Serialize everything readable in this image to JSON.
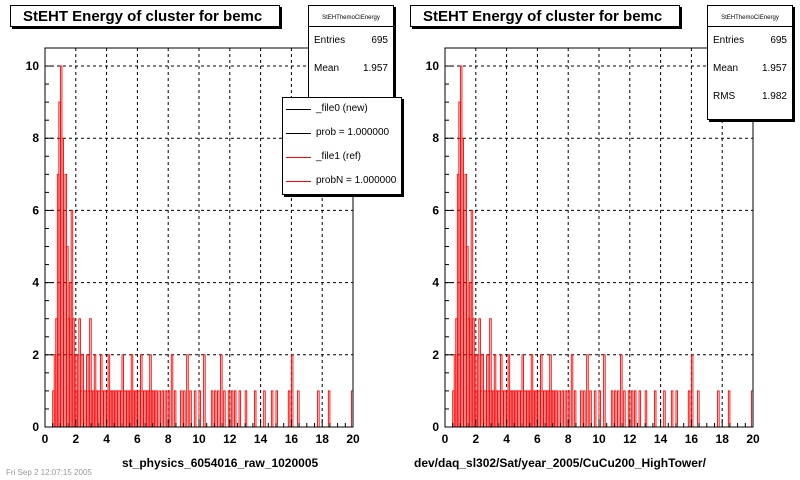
{
  "footer_text": "Fri Sep 2 12:07:15 2005",
  "chart_data": [
    {
      "type": "bar",
      "title": "StEHT Energy of cluster for bemc",
      "xlabel": "st_physics_6054016_raw_1020005",
      "ylabel": "",
      "xlim": [
        0,
        20
      ],
      "ylim": [
        0,
        10.5
      ],
      "xticks": [
        0,
        2,
        4,
        6,
        8,
        10,
        12,
        14,
        16,
        18,
        20
      ],
      "yticks": [
        0,
        2,
        4,
        6,
        8,
        10
      ],
      "grid": true,
      "stats": {
        "title": "StEHThemoCIEnergy",
        "entries": [
          {
            "label": "Entries",
            "value": "695"
          },
          {
            "label": "Mean",
            "value": "1.957"
          }
        ]
      },
      "legend": [
        {
          "label": "_file0 (new)",
          "color": "#000000"
        },
        {
          "label": "prob = 1.000000",
          "color": "#000000"
        },
        {
          "label": "_file1 (ref)",
          "color": "#ff0000"
        },
        {
          "label": "probN = 1.000000",
          "color": "#ff0000"
        }
      ],
      "series": [
        {
          "color": "#ff0000",
          "x": [
            0.55,
            0.65,
            0.75,
            0.85,
            0.95,
            1.05,
            1.15,
            1.25,
            1.35,
            1.45,
            1.55,
            1.65,
            1.75,
            1.85,
            1.95,
            2.05,
            2.15,
            2.25,
            2.35,
            2.45,
            2.55,
            2.65,
            2.75,
            2.85,
            2.95,
            3.05,
            3.15,
            3.25,
            3.35,
            3.45,
            3.55,
            3.65,
            3.75,
            3.85,
            3.95,
            4.05,
            4.15,
            4.25,
            4.35,
            4.45,
            4.55,
            4.65,
            4.75,
            4.85,
            4.95,
            5.05,
            5.15,
            5.25,
            5.35,
            5.45,
            5.55,
            5.65,
            5.75,
            5.85,
            5.95,
            6.05,
            6.15,
            6.25,
            6.35,
            6.45,
            6.55,
            6.65,
            6.75,
            6.85,
            6.95,
            7.05,
            7.15,
            7.25,
            7.45,
            7.65,
            7.85,
            8.05,
            8.25,
            8.45,
            8.85,
            9.05,
            9.25,
            9.45,
            9.75,
            10.05,
            10.35,
            10.85,
            11.05,
            11.25,
            11.45,
            11.65,
            11.95,
            12.15,
            12.35,
            12.65,
            13.05,
            13.65,
            14.25,
            14.75,
            15.05,
            15.85,
            16.05,
            16.45,
            17.75,
            18.45,
            19.95
          ],
          "values": [
            1,
            2,
            3,
            7,
            9,
            10,
            8,
            6,
            7,
            5,
            3,
            4,
            6,
            3,
            2,
            1,
            2,
            3,
            1,
            2,
            1,
            1,
            2,
            1,
            3,
            1,
            1,
            2,
            1,
            1,
            1,
            2,
            1,
            1,
            1,
            1,
            2,
            1,
            1,
            1,
            1,
            1,
            1,
            1,
            1,
            2,
            1,
            1,
            1,
            1,
            1,
            2,
            1,
            1,
            1,
            1,
            1,
            2,
            1,
            1,
            1,
            1,
            1,
            2,
            1,
            1,
            1,
            1,
            1,
            1,
            1,
            1,
            2,
            1,
            1,
            1,
            2,
            1,
            1,
            1,
            2,
            1,
            1,
            1,
            2,
            1,
            1,
            1,
            1,
            1,
            1,
            1,
            1,
            1,
            1,
            1,
            2,
            1,
            1,
            1,
            1
          ]
        }
      ]
    },
    {
      "type": "bar",
      "title": "StEHT Energy of cluster for bemc",
      "xlabel": "dev/daq_sl302/Sat/year_2005/CuCu200_HighTower/",
      "ylabel": "",
      "xlim": [
        0,
        20
      ],
      "ylim": [
        0,
        10.5
      ],
      "xticks": [
        0,
        2,
        4,
        6,
        8,
        10,
        12,
        14,
        16,
        18,
        20
      ],
      "yticks": [
        0,
        2,
        4,
        6,
        8,
        10
      ],
      "grid": true,
      "stats": {
        "title": "StEHThemoCIEnergy",
        "entries": [
          {
            "label": "Entries",
            "value": "695"
          },
          {
            "label": "Mean",
            "value": "1.957"
          },
          {
            "label": "RMS",
            "value": "1.982"
          }
        ]
      },
      "series": [
        {
          "color": "#ff0000",
          "x": [
            0.55,
            0.65,
            0.75,
            0.85,
            0.95,
            1.05,
            1.15,
            1.25,
            1.35,
            1.45,
            1.55,
            1.65,
            1.75,
            1.85,
            1.95,
            2.05,
            2.15,
            2.25,
            2.35,
            2.45,
            2.55,
            2.65,
            2.75,
            2.85,
            2.95,
            3.05,
            3.15,
            3.25,
            3.35,
            3.45,
            3.55,
            3.65,
            3.75,
            3.85,
            3.95,
            4.05,
            4.15,
            4.25,
            4.35,
            4.45,
            4.55,
            4.65,
            4.75,
            4.85,
            4.95,
            5.05,
            5.15,
            5.25,
            5.35,
            5.45,
            5.55,
            5.65,
            5.75,
            5.85,
            5.95,
            6.05,
            6.15,
            6.25,
            6.35,
            6.45,
            6.55,
            6.65,
            6.75,
            6.85,
            6.95,
            7.05,
            7.15,
            7.25,
            7.45,
            7.65,
            7.85,
            8.05,
            8.25,
            8.45,
            8.85,
            9.05,
            9.25,
            9.45,
            9.75,
            10.05,
            10.35,
            10.85,
            11.05,
            11.25,
            11.45,
            11.65,
            11.95,
            12.15,
            12.35,
            12.65,
            13.05,
            13.65,
            14.25,
            14.75,
            15.05,
            15.85,
            16.05,
            16.45,
            17.75,
            18.45,
            19.95
          ],
          "values": [
            1,
            2,
            3,
            7,
            9,
            10,
            8,
            6,
            7,
            5,
            3,
            4,
            6,
            3,
            2,
            1,
            2,
            3,
            1,
            2,
            1,
            1,
            2,
            1,
            3,
            1,
            1,
            2,
            1,
            1,
            1,
            2,
            1,
            1,
            1,
            1,
            2,
            1,
            1,
            1,
            1,
            1,
            1,
            1,
            1,
            2,
            1,
            1,
            1,
            1,
            1,
            2,
            1,
            1,
            1,
            1,
            1,
            2,
            1,
            1,
            1,
            1,
            1,
            2,
            1,
            1,
            1,
            1,
            1,
            1,
            1,
            1,
            2,
            1,
            1,
            1,
            2,
            1,
            1,
            1,
            2,
            1,
            1,
            1,
            2,
            1,
            1,
            1,
            1,
            1,
            1,
            1,
            1,
            1,
            1,
            1,
            2,
            1,
            1,
            1,
            1
          ]
        }
      ]
    }
  ]
}
